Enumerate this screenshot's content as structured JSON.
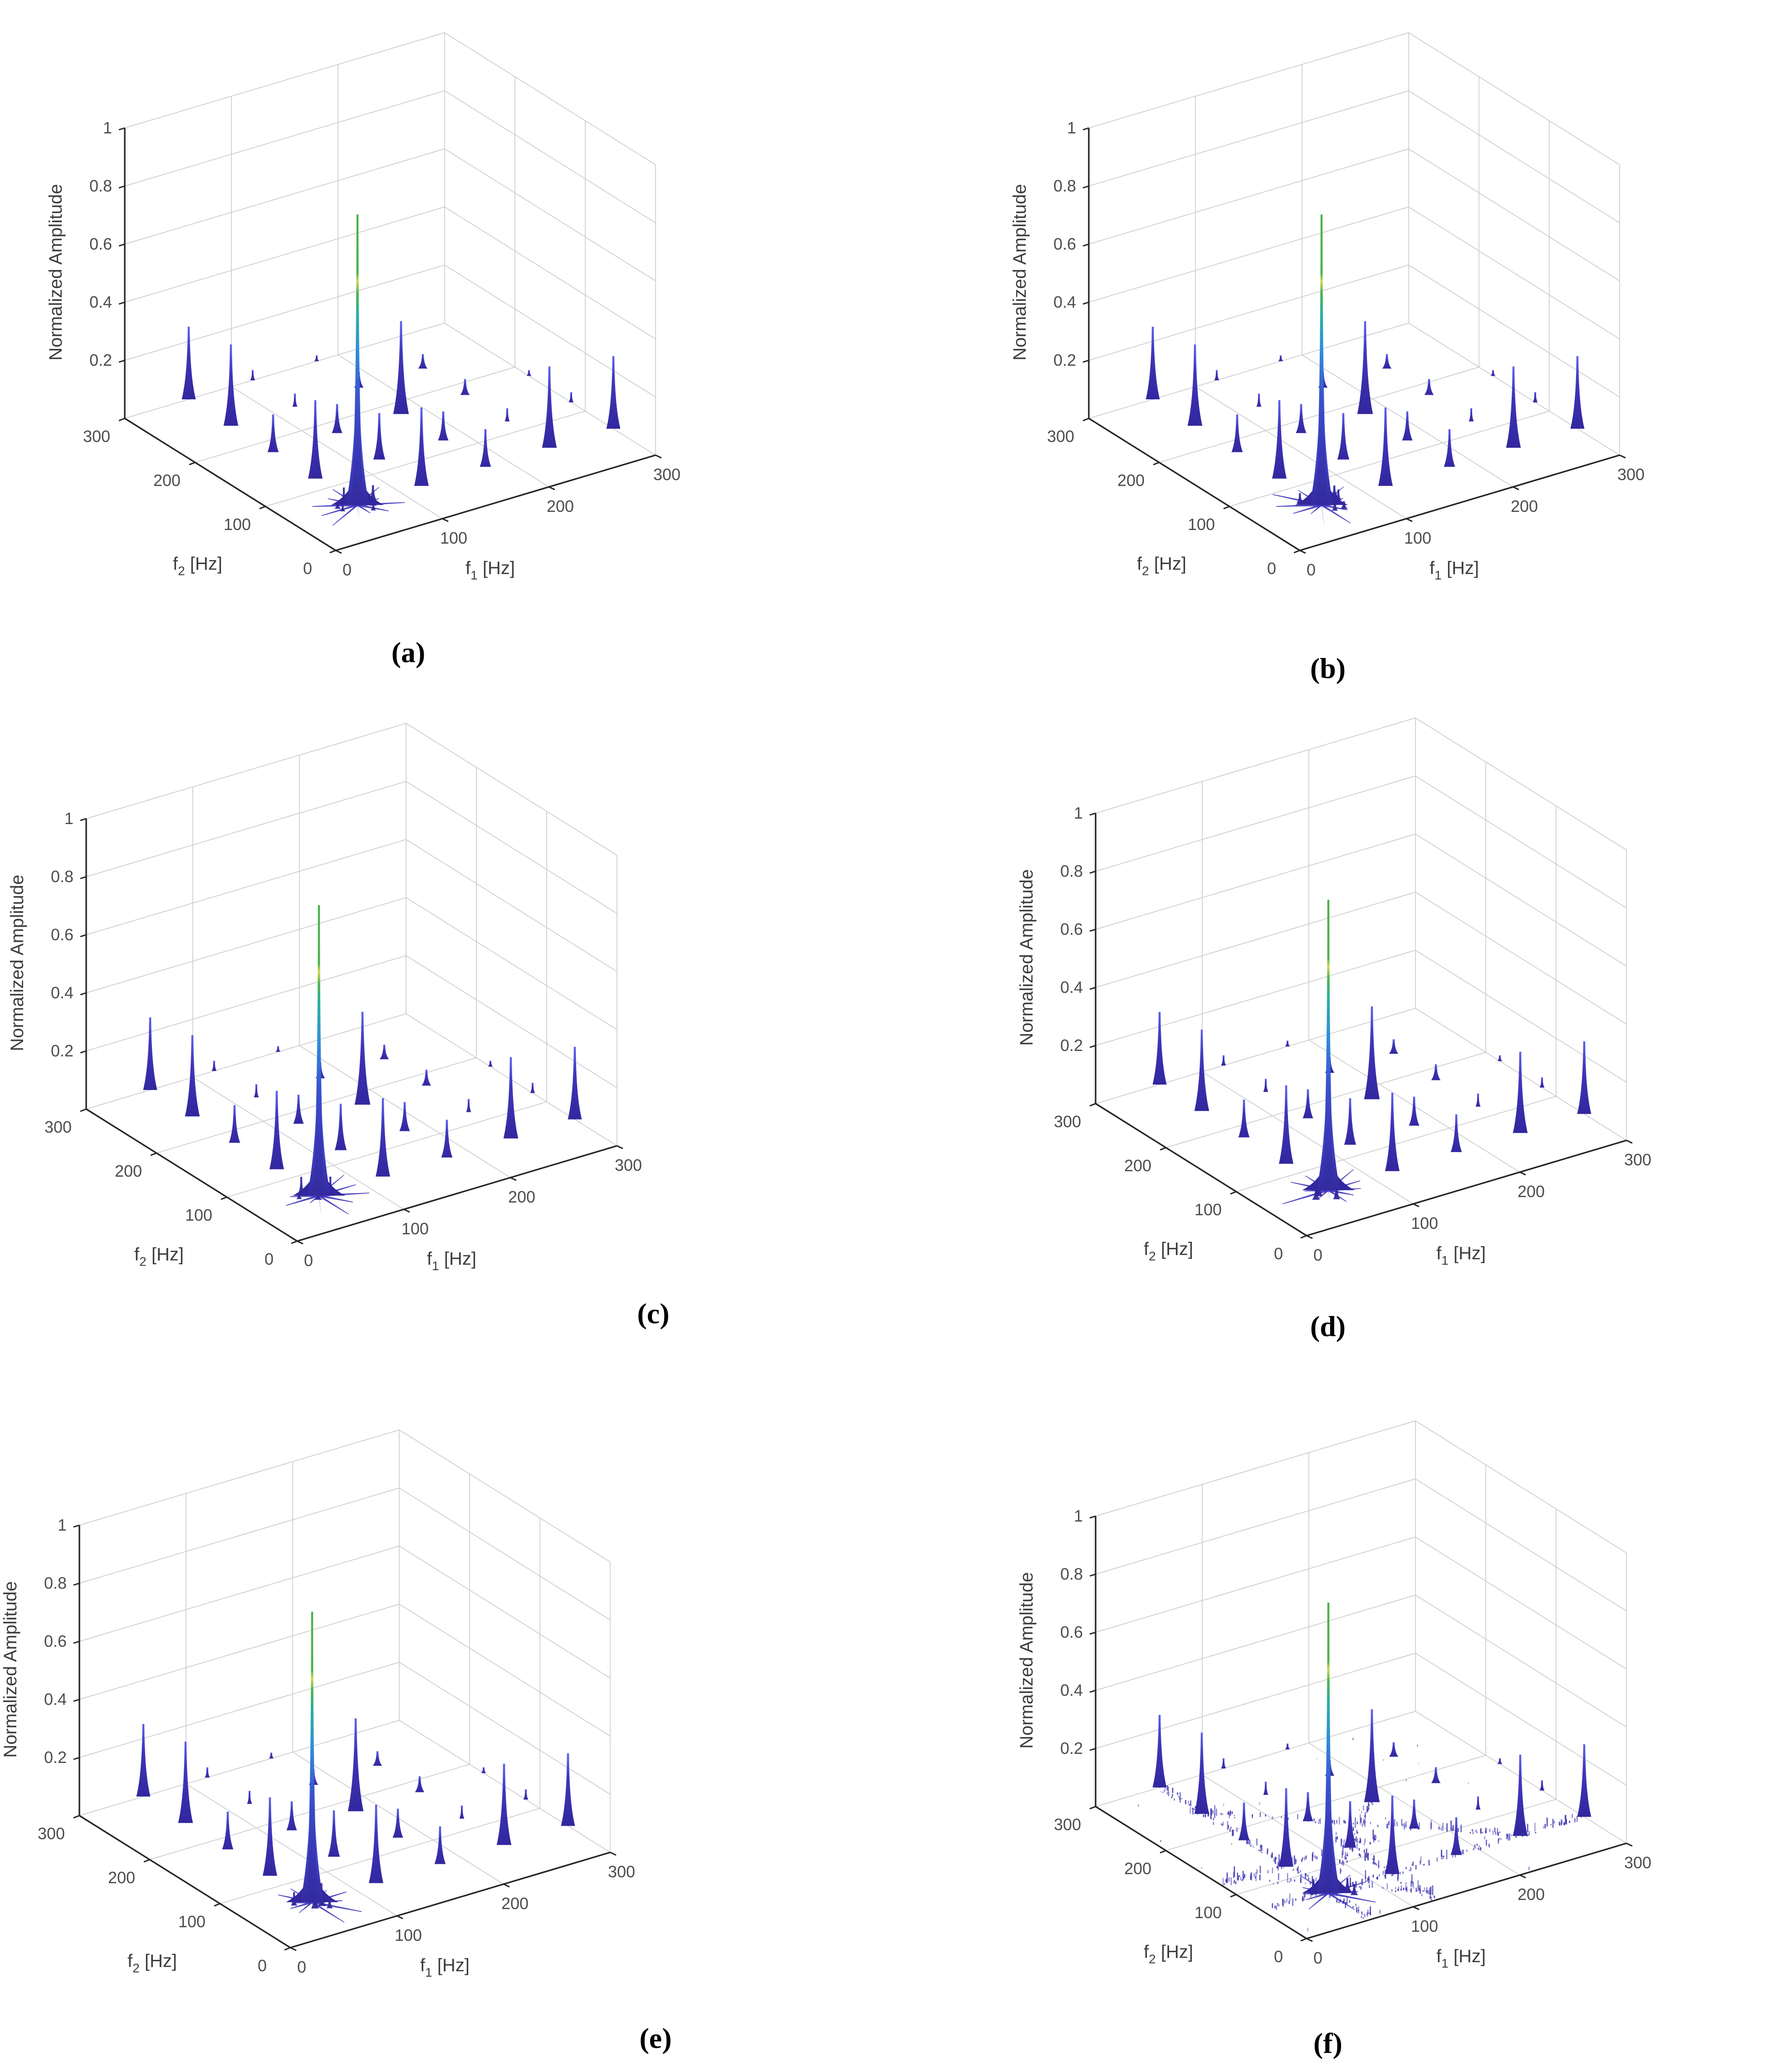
{
  "figure": {
    "panels": [
      {
        "id": "a",
        "caption": "(a)"
      },
      {
        "id": "b",
        "caption": "(b)"
      },
      {
        "id": "c",
        "caption": "(c)"
      },
      {
        "id": "d",
        "caption": "(d)"
      },
      {
        "id": "e",
        "caption": "(e)"
      },
      {
        "id": "f",
        "caption": "(f)"
      }
    ]
  },
  "colors": {
    "background": "#ffffff",
    "axis_line": "#262626",
    "grid_line": "#cccccc",
    "tick_label": "#4d4d4d",
    "axis_title": "#3d3d3d",
    "spike_dark": "#32279e",
    "spike_mid": "#3f36bb",
    "spike_light": "#5b63ef",
    "main_peak_gradient_bottom_to_top": [
      "#332a9e",
      "#3a55cf",
      "#2f8ddc",
      "#2ab0a0",
      "#4ab34d",
      "#cdd94e",
      "#46b348"
    ],
    "noise_dot": "#3b30b0"
  },
  "chart_data": [
    {
      "panel": "(a)",
      "type": "scatter",
      "variant": "3d-spike-spectrum",
      "xlabel": {
        "base": "f",
        "sub": "1",
        "unit": " [Hz]"
      },
      "ylabel": {
        "base": "f",
        "sub": "2",
        "unit": " [Hz]"
      },
      "zlabel": "Normalized Amplitude",
      "xlim": [
        0,
        300
      ],
      "ylim": [
        0,
        300
      ],
      "zlim": [
        0,
        1
      ],
      "xticks": [
        "0",
        "100",
        "200",
        "300"
      ],
      "yticks": [
        "0",
        "100",
        "200",
        "300"
      ],
      "zticks": [
        "0.2",
        "0.4",
        "0.6",
        "0.8",
        "1"
      ],
      "grid": true,
      "legend": false,
      "peaks_format": "[f1_hz, f2_hz, normalized_amplitude]",
      "peaks": [
        [
          60,
          60,
          1.0
        ],
        [
          120,
          60,
          0.27
        ],
        [
          60,
          120,
          0.27
        ],
        [
          180,
          60,
          0.13
        ],
        [
          60,
          180,
          0.13
        ],
        [
          240,
          60,
          0.28
        ],
        [
          60,
          240,
          0.28
        ],
        [
          300,
          60,
          0.25
        ],
        [
          60,
          300,
          0.25
        ],
        [
          120,
          120,
          0.16
        ],
        [
          180,
          120,
          0.1
        ],
        [
          120,
          180,
          0.1
        ],
        [
          240,
          120,
          0.045
        ],
        [
          120,
          240,
          0.045
        ],
        [
          300,
          120,
          0.035
        ],
        [
          120,
          300,
          0.035
        ],
        [
          180,
          180,
          0.32
        ],
        [
          240,
          180,
          0.055
        ],
        [
          180,
          240,
          0.055
        ],
        [
          240,
          240,
          0.05
        ],
        [
          300,
          180,
          0.02
        ],
        [
          180,
          300,
          0.02
        ]
      ],
      "noise_ridges": []
    },
    {
      "panel": "(b)",
      "type": "scatter",
      "variant": "3d-spike-spectrum",
      "xlabel": {
        "base": "f",
        "sub": "1",
        "unit": " [Hz]"
      },
      "ylabel": {
        "base": "f",
        "sub": "2",
        "unit": " [Hz]"
      },
      "zlabel": "Normalized Amplitude",
      "xlim": [
        0,
        300
      ],
      "ylim": [
        0,
        300
      ],
      "zlim": [
        0,
        1
      ],
      "xticks": [
        "0",
        "100",
        "200",
        "300"
      ],
      "yticks": [
        "0",
        "100",
        "200",
        "300"
      ],
      "zticks": [
        "0.2",
        "0.4",
        "0.6",
        "0.8",
        "1"
      ],
      "grid": true,
      "legend": false,
      "peaks_format": "[f1_hz, f2_hz, normalized_amplitude]",
      "peaks": [
        [
          60,
          60,
          1.0
        ],
        [
          120,
          60,
          0.27
        ],
        [
          60,
          120,
          0.27
        ],
        [
          180,
          60,
          0.13
        ],
        [
          60,
          180,
          0.13
        ],
        [
          240,
          60,
          0.28
        ],
        [
          60,
          240,
          0.28
        ],
        [
          300,
          60,
          0.25
        ],
        [
          60,
          300,
          0.25
        ],
        [
          120,
          120,
          0.16
        ],
        [
          180,
          120,
          0.1
        ],
        [
          120,
          180,
          0.1
        ],
        [
          240,
          120,
          0.045
        ],
        [
          120,
          240,
          0.045
        ],
        [
          300,
          120,
          0.035
        ],
        [
          120,
          300,
          0.035
        ],
        [
          180,
          180,
          0.32
        ],
        [
          240,
          180,
          0.055
        ],
        [
          180,
          240,
          0.055
        ],
        [
          240,
          240,
          0.05
        ],
        [
          300,
          180,
          0.02
        ],
        [
          180,
          300,
          0.02
        ]
      ],
      "noise_ridges": []
    },
    {
      "panel": "(c)",
      "type": "scatter",
      "variant": "3d-spike-spectrum",
      "xlabel": {
        "base": "f",
        "sub": "1",
        "unit": " [Hz]"
      },
      "ylabel": {
        "base": "f",
        "sub": "2",
        "unit": " [Hz]"
      },
      "zlabel": "Normalized Amplitude",
      "xlim": [
        0,
        300
      ],
      "ylim": [
        0,
        300
      ],
      "zlim": [
        0,
        1
      ],
      "xticks": [
        "0",
        "100",
        "200",
        "300"
      ],
      "yticks": [
        "0",
        "100",
        "200",
        "300"
      ],
      "zticks": [
        "0.2",
        "0.4",
        "0.6",
        "0.8",
        "1"
      ],
      "grid": true,
      "legend": false,
      "peaks_format": "[f1_hz, f2_hz, normalized_amplitude]",
      "peaks": [
        [
          60,
          60,
          1.0
        ],
        [
          120,
          60,
          0.27
        ],
        [
          60,
          120,
          0.27
        ],
        [
          180,
          60,
          0.13
        ],
        [
          60,
          180,
          0.13
        ],
        [
          240,
          60,
          0.28
        ],
        [
          60,
          240,
          0.28
        ],
        [
          300,
          60,
          0.25
        ],
        [
          60,
          300,
          0.25
        ],
        [
          120,
          120,
          0.16
        ],
        [
          180,
          120,
          0.1
        ],
        [
          120,
          180,
          0.1
        ],
        [
          240,
          120,
          0.045
        ],
        [
          120,
          240,
          0.045
        ],
        [
          300,
          120,
          0.035
        ],
        [
          120,
          300,
          0.035
        ],
        [
          180,
          180,
          0.32
        ],
        [
          240,
          180,
          0.055
        ],
        [
          180,
          240,
          0.055
        ],
        [
          240,
          240,
          0.05
        ],
        [
          300,
          180,
          0.02
        ],
        [
          180,
          300,
          0.02
        ]
      ],
      "noise_ridges": []
    },
    {
      "panel": "(d)",
      "type": "scatter",
      "variant": "3d-spike-spectrum",
      "xlabel": {
        "base": "f",
        "sub": "1",
        "unit": " [Hz]"
      },
      "ylabel": {
        "base": "f",
        "sub": "2",
        "unit": " [Hz]"
      },
      "zlabel": "Normalized Amplitude",
      "xlim": [
        0,
        300
      ],
      "ylim": [
        0,
        300
      ],
      "zlim": [
        0,
        1
      ],
      "xticks": [
        "0",
        "100",
        "200",
        "300"
      ],
      "yticks": [
        "0",
        "100",
        "200",
        "300"
      ],
      "zticks": [
        "0.2",
        "0.4",
        "0.6",
        "0.8",
        "1"
      ],
      "grid": true,
      "legend": false,
      "peaks_format": "[f1_hz, f2_hz, normalized_amplitude]",
      "peaks": [
        [
          60,
          60,
          1.0
        ],
        [
          120,
          60,
          0.27
        ],
        [
          60,
          120,
          0.27
        ],
        [
          180,
          60,
          0.13
        ],
        [
          60,
          180,
          0.13
        ],
        [
          240,
          60,
          0.28
        ],
        [
          60,
          240,
          0.28
        ],
        [
          300,
          60,
          0.25
        ],
        [
          60,
          300,
          0.25
        ],
        [
          120,
          120,
          0.16
        ],
        [
          180,
          120,
          0.1
        ],
        [
          120,
          180,
          0.1
        ],
        [
          240,
          120,
          0.045
        ],
        [
          120,
          240,
          0.045
        ],
        [
          300,
          120,
          0.035
        ],
        [
          120,
          300,
          0.035
        ],
        [
          180,
          180,
          0.32
        ],
        [
          240,
          180,
          0.055
        ],
        [
          180,
          240,
          0.055
        ],
        [
          240,
          240,
          0.05
        ],
        [
          300,
          180,
          0.02
        ],
        [
          180,
          300,
          0.02
        ]
      ],
      "noise_ridges": []
    },
    {
      "panel": "(e)",
      "type": "scatter",
      "variant": "3d-spike-spectrum",
      "xlabel": {
        "base": "f",
        "sub": "1",
        "unit": " [Hz]"
      },
      "ylabel": {
        "base": "f",
        "sub": "2",
        "unit": " [Hz]"
      },
      "zlabel": "Normalized Amplitude",
      "xlim": [
        0,
        300
      ],
      "ylim": [
        0,
        300
      ],
      "zlim": [
        0,
        1
      ],
      "xticks": [
        "0",
        "100",
        "200",
        "300"
      ],
      "yticks": [
        "0",
        "100",
        "200",
        "300"
      ],
      "zticks": [
        "0.2",
        "0.4",
        "0.6",
        "0.8",
        "1"
      ],
      "grid": true,
      "legend": false,
      "peaks_format": "[f1_hz, f2_hz, normalized_amplitude]",
      "peaks": [
        [
          60,
          60,
          1.0
        ],
        [
          120,
          60,
          0.27
        ],
        [
          60,
          120,
          0.27
        ],
        [
          180,
          60,
          0.13
        ],
        [
          60,
          180,
          0.13
        ],
        [
          240,
          60,
          0.28
        ],
        [
          60,
          240,
          0.28
        ],
        [
          300,
          60,
          0.25
        ],
        [
          60,
          300,
          0.25
        ],
        [
          120,
          120,
          0.16
        ],
        [
          180,
          120,
          0.1
        ],
        [
          120,
          180,
          0.1
        ],
        [
          240,
          120,
          0.045
        ],
        [
          120,
          240,
          0.045
        ],
        [
          300,
          120,
          0.035
        ],
        [
          120,
          300,
          0.035
        ],
        [
          180,
          180,
          0.32
        ],
        [
          240,
          180,
          0.055
        ],
        [
          180,
          240,
          0.055
        ],
        [
          240,
          240,
          0.05
        ],
        [
          300,
          180,
          0.02
        ],
        [
          180,
          300,
          0.02
        ]
      ],
      "noise_ridges": []
    },
    {
      "panel": "(f)",
      "type": "scatter",
      "variant": "3d-spike-spectrum",
      "xlabel": {
        "base": "f",
        "sub": "1",
        "unit": " [Hz]"
      },
      "ylabel": {
        "base": "f",
        "sub": "2",
        "unit": " [Hz]"
      },
      "zlabel": "Normalized Amplitude",
      "xlim": [
        0,
        300
      ],
      "ylim": [
        0,
        300
      ],
      "zlim": [
        0,
        1
      ],
      "xticks": [
        "0",
        "100",
        "200",
        "300"
      ],
      "yticks": [
        "0",
        "100",
        "200",
        "300"
      ],
      "zticks": [
        "0.2",
        "0.4",
        "0.6",
        "0.8",
        "1"
      ],
      "grid": true,
      "legend": false,
      "peaks_format": "[f1_hz, f2_hz, normalized_amplitude]",
      "peaks": [
        [
          60,
          60,
          1.0
        ],
        [
          120,
          60,
          0.27
        ],
        [
          60,
          120,
          0.27
        ],
        [
          180,
          60,
          0.13
        ],
        [
          60,
          180,
          0.13
        ],
        [
          240,
          60,
          0.28
        ],
        [
          60,
          240,
          0.28
        ],
        [
          300,
          60,
          0.25
        ],
        [
          60,
          300,
          0.25
        ],
        [
          120,
          120,
          0.16
        ],
        [
          180,
          120,
          0.1
        ],
        [
          120,
          180,
          0.1
        ],
        [
          240,
          120,
          0.045
        ],
        [
          120,
          240,
          0.045
        ],
        [
          300,
          120,
          0.035
        ],
        [
          120,
          300,
          0.035
        ],
        [
          180,
          180,
          0.32
        ],
        [
          240,
          180,
          0.055
        ],
        [
          180,
          240,
          0.055
        ],
        [
          240,
          240,
          0.05
        ],
        [
          300,
          180,
          0.02
        ],
        [
          180,
          300,
          0.02
        ]
      ],
      "noise_ridges": [
        {
          "type": "line",
          "fixed": "f2",
          "value": 60,
          "range": [
            0,
            300
          ]
        },
        {
          "type": "line",
          "fixed": "f1",
          "value": 60,
          "range": [
            0,
            300
          ]
        },
        {
          "type": "antidiagonal",
          "sum": 300,
          "f1_range": [
            55,
            245
          ]
        },
        {
          "type": "antidiagonal",
          "sum": 140,
          "f1_range": [
            15,
            125
          ]
        },
        {
          "type": "line",
          "fixed": "f2",
          "value": 120,
          "range": [
            0,
            150
          ]
        },
        {
          "type": "line",
          "fixed": "f1",
          "value": 120,
          "range": [
            0,
            150
          ]
        },
        {
          "type": "diagonal",
          "f1_range": [
            60,
            190
          ]
        }
      ]
    }
  ]
}
